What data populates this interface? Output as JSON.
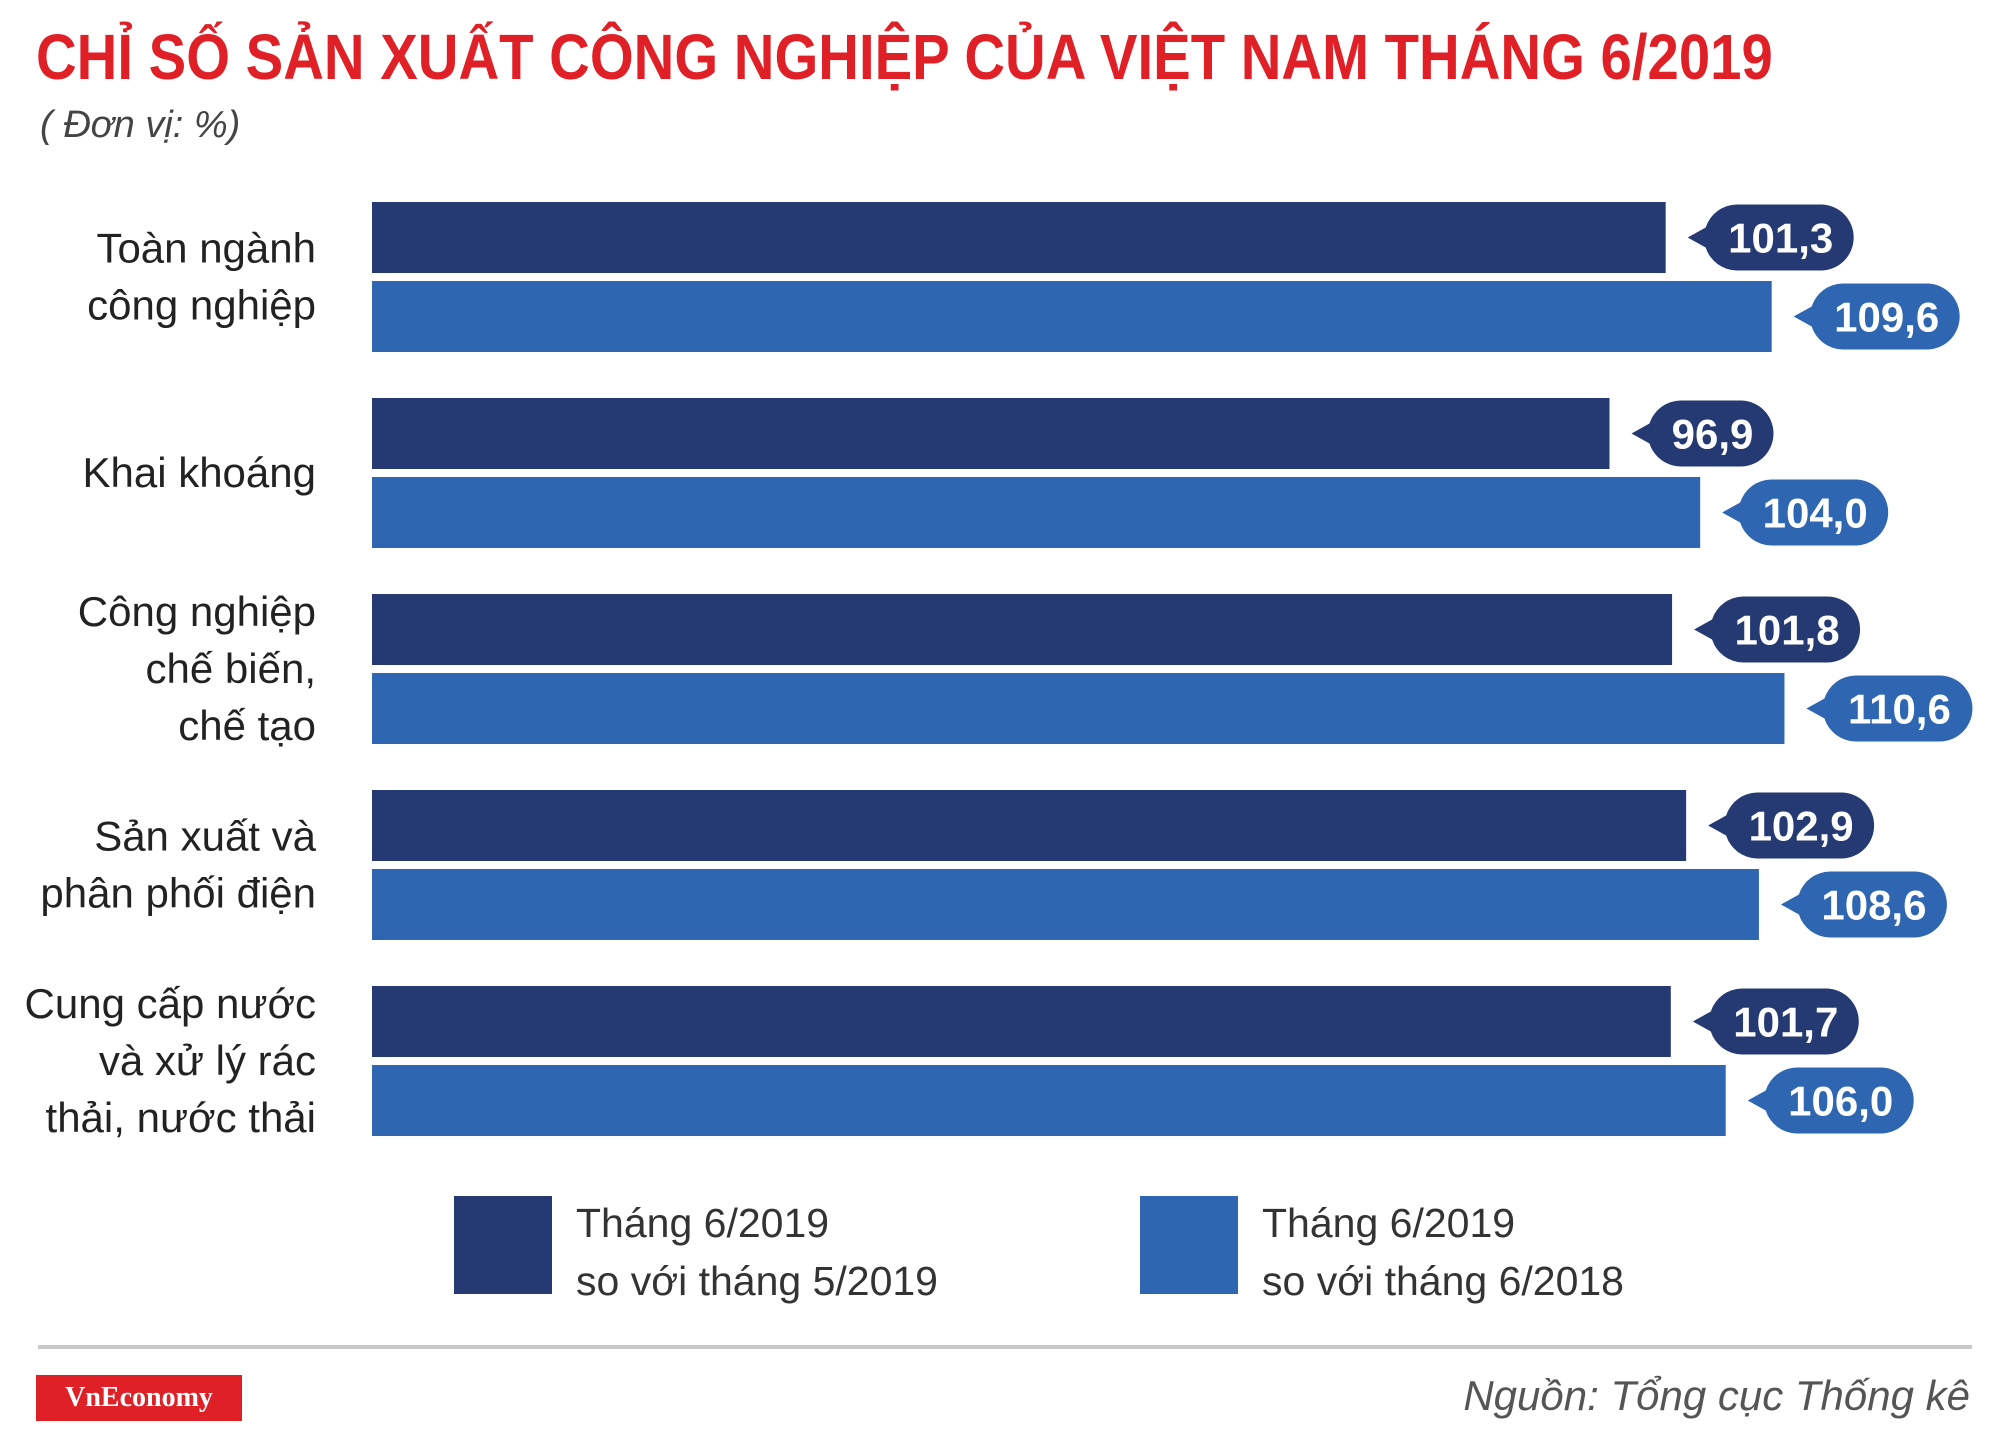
{
  "title": "CHỈ SỐ SẢN XUẤT CÔNG NGHIỆP CỦA VIỆT NAM THÁNG 6/2019",
  "subtitle": "( Đơn vị: %)",
  "colors": {
    "title": "#e02027",
    "series1": "#253a72",
    "series2": "#2e66b2",
    "logo_bg": "#e02027"
  },
  "chart_data": {
    "type": "bar",
    "orientation": "horizontal",
    "categories": [
      [
        "Toàn ngành",
        "công nghiệp"
      ],
      [
        "Khai khoáng"
      ],
      [
        "Công nghiệp",
        "chế biến,",
        "chế tạo"
      ],
      [
        "Sản xuất và",
        "phân phối điện"
      ],
      [
        "Cung cấp nước",
        "và xử lý rác",
        "thải, nước thải"
      ]
    ],
    "series": [
      {
        "name": [
          "Tháng 6/2019",
          "so với tháng 5/2019"
        ],
        "values": [
          101.3,
          96.9,
          101.8,
          102.9,
          101.7
        ],
        "labels": [
          "101,3",
          "96,9",
          "101,8",
          "102,9",
          "101,7"
        ]
      },
      {
        "name": [
          "Tháng 6/2019",
          "so với tháng 6/2018"
        ],
        "values": [
          109.6,
          104.0,
          110.6,
          108.6,
          106.0
        ],
        "labels": [
          "109,6",
          "104,0",
          "110,6",
          "108,6",
          "106,0"
        ]
      }
    ],
    "xlim": [
      0,
      112.6
    ],
    "axis_visible": false,
    "grid": false,
    "legend_position": "bottom"
  },
  "footer": {
    "logo": "VnEconomy",
    "source": "Nguồn: Tổng cục Thống kê"
  }
}
